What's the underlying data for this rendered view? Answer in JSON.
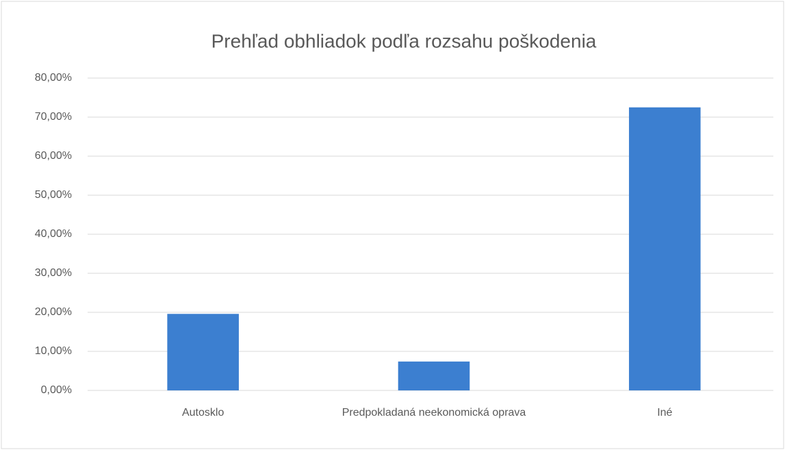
{
  "chart_data": {
    "type": "bar",
    "title": "Prehľad obhliadok podľa rozsahu poškodenia",
    "categories": [
      "Autosklo",
      "Predpokladaná neekonomická oprava",
      "Iné"
    ],
    "values": [
      19.6,
      7.4,
      72.5
    ],
    "color": "#3c7fd0",
    "ylim": [
      0,
      80
    ],
    "yticks": [
      {
        "value": 0,
        "label": "0,00%"
      },
      {
        "value": 10,
        "label": "10,00%"
      },
      {
        "value": 20,
        "label": "20,00%"
      },
      {
        "value": 30,
        "label": "30,00%"
      },
      {
        "value": 40,
        "label": "40,00%"
      },
      {
        "value": 50,
        "label": "50,00%"
      },
      {
        "value": 60,
        "label": "60,00%"
      },
      {
        "value": 70,
        "label": "70,00%"
      },
      {
        "value": 80,
        "label": "80,00%"
      }
    ],
    "grid": true
  }
}
